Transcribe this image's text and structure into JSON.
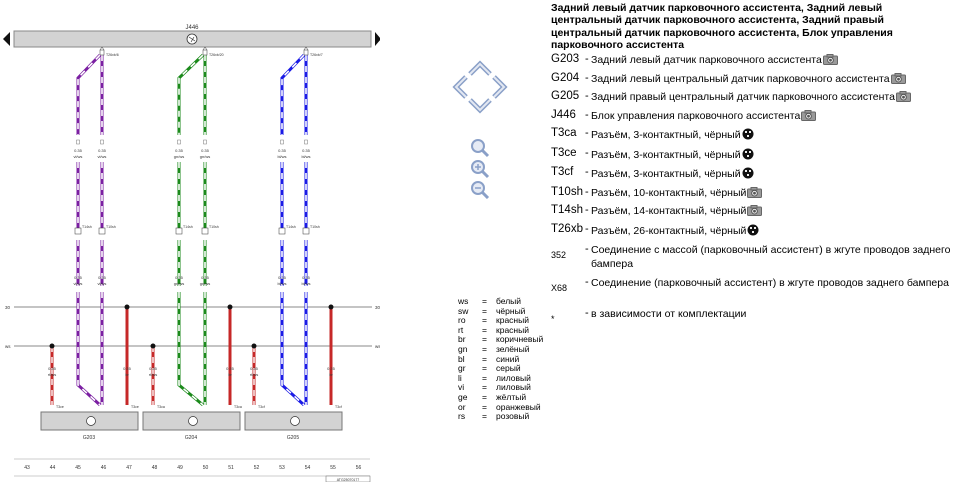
{
  "diagram": {
    "control_unit": "J446",
    "sensor_labels": [
      "G203",
      "G204",
      "G205"
    ],
    "column_numbers": [
      "43",
      "44",
      "45",
      "46",
      "47",
      "48",
      "49",
      "50",
      "51",
      "52",
      "53",
      "54",
      "55",
      "56"
    ],
    "bus_left": [
      "30",
      "ws"
    ],
    "bus_right": [
      "30",
      "ws"
    ],
    "doc_code": "ATG25070177",
    "top_connectors": [
      "T26xb/6",
      "T26xb/20",
      "T26xb/7"
    ],
    "wires": [
      {
        "sz": "0.35",
        "color": "vi/ws"
      },
      {
        "sz": "0.35",
        "color": "vi/ws"
      },
      {
        "sz": "0.35",
        "color": "gn/ws"
      },
      {
        "sz": "0.35",
        "color": "gn/ws"
      },
      {
        "sz": "0.35",
        "color": "bl/ws"
      },
      {
        "sz": "0.35",
        "color": "bl/ws"
      }
    ],
    "red_wire": {
      "sz": "0.35",
      "color": "br"
    },
    "redws_wire": {
      "sz": "0.35",
      "color": "rt/ws"
    },
    "connector_pins": [
      "T14sh",
      "T10sh"
    ],
    "sensor_connectors": [
      "T3ce",
      "T3ca",
      "T3cf"
    ]
  },
  "nav": {
    "up": "arrow-up",
    "down": "arrow-down",
    "left": "arrow-left",
    "right": "arrow-right",
    "zoom_in": "zoom-in",
    "zoom_reset": "zoom-reset",
    "zoom_out": "zoom-out"
  },
  "colors": {
    "violet": "#7b1fa2",
    "green": "#1b8a1b",
    "blue": "#1a1ae6",
    "red": "#c62828",
    "bus": "#d3d3d3"
  },
  "legend": [
    {
      "code": "ws",
      "name": "белый"
    },
    {
      "code": "sw",
      "name": "чёрный"
    },
    {
      "code": "ro",
      "name": "красный"
    },
    {
      "code": "rt",
      "name": "красный"
    },
    {
      "code": "br",
      "name": "коричневый"
    },
    {
      "code": "gn",
      "name": "зелёный"
    },
    {
      "code": "bl",
      "name": "синий"
    },
    {
      "code": "gr",
      "name": "серый"
    },
    {
      "code": "li",
      "name": "лиловый"
    },
    {
      "code": "vi",
      "name": "лиловый"
    },
    {
      "code": "ge",
      "name": "жёлтый"
    },
    {
      "code": "or",
      "name": "оранжевый"
    },
    {
      "code": "rs",
      "name": "розовый"
    }
  ],
  "legend_eq": "=",
  "title": "Задний левый датчик парковочного ассистента, Задний левый центральный датчик парковочного ассистента, Задний правый центральный датчик парковочного ассистента, Блок управления парковочного ассистента",
  "components": [
    {
      "code": "G203",
      "desc": "Задний левый датчик парковочного ассистента",
      "icon": "camera"
    },
    {
      "code": "G204",
      "desc": "Задний левый центральный датчик парковочного ассистента",
      "icon": "camera"
    },
    {
      "code": "G205",
      "desc": "Задний правый центральный датчик парковочного ассистента",
      "icon": "camera"
    },
    {
      "code": "J446",
      "desc": "Блок управления парковочного ассистента",
      "icon": "camera"
    },
    {
      "code": "T3ca",
      "desc": "Разъём, 3-контактный, чёрный",
      "icon": "connector"
    },
    {
      "code": "T3ce",
      "desc": "Разъём, 3-контактный, чёрный",
      "icon": "connector"
    },
    {
      "code": "T3cf",
      "desc": "Разъём, 3-контактный, чёрный",
      "icon": "connector"
    },
    {
      "code": "T10sh",
      "desc": "Разъём, 10-контактный, чёрный",
      "icon": "camera"
    },
    {
      "code": "T14sh",
      "desc": "Разъём, 14-контактный, чёрный",
      "icon": "camera"
    },
    {
      "code": "T26xb",
      "desc": "Разъём, 26-контактный, чёрный",
      "icon": "connector"
    },
    {
      "code": "352",
      "desc": "Соединение с массой (парковочный ассистент) в жгуте проводов заднего бампера",
      "icon": ""
    },
    {
      "code": "X68",
      "desc": "Соединение (парковочный ассистент) в жгуте проводов заднего бампера",
      "icon": ""
    },
    {
      "code": "*",
      "desc": "в зависимости от комплектации",
      "icon": ""
    }
  ],
  "dash": "-"
}
